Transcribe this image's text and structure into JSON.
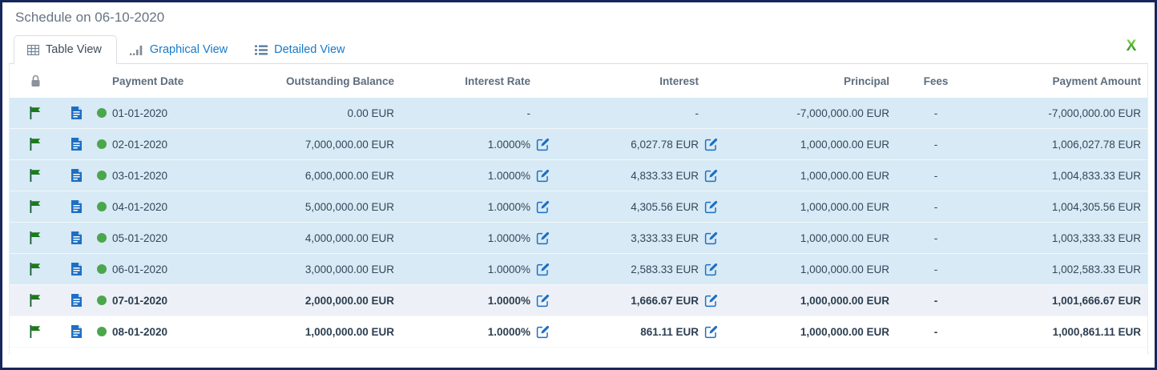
{
  "window": {
    "title": "Schedule on 06-10-2020"
  },
  "tabs": [
    {
      "label": "Table View",
      "icon": "table-icon",
      "active": true
    },
    {
      "label": "Graphical View",
      "icon": "bar-chart-icon",
      "active": false
    },
    {
      "label": "Detailed View",
      "icon": "list-icon",
      "active": false
    }
  ],
  "toolbar": {
    "excel_export_icon": "excel-x-icon"
  },
  "table": {
    "header": {
      "lock_icon": "lock-icon",
      "payment_date": "Payment Date",
      "outstanding_balance": "Outstanding Balance",
      "interest_rate": "Interest Rate",
      "interest": "Interest",
      "principal": "Principal",
      "fees": "Fees",
      "payment_amount": "Payment Amount"
    },
    "row_icons": {
      "flag": "flag-icon",
      "document": "document-icon",
      "status": "status-dot",
      "edit": "edit-icon"
    },
    "rows": [
      {
        "payment_date": "01-01-2020",
        "outstanding_balance": "0.00 EUR",
        "interest_rate": "-",
        "interest": "-",
        "principal": "-7,000,000.00 EUR",
        "fees": "-",
        "payment_amount": "-7,000,000.00 EUR",
        "editable": false,
        "bold": false,
        "bg": "blue"
      },
      {
        "payment_date": "02-01-2020",
        "outstanding_balance": "7,000,000.00 EUR",
        "interest_rate": "1.0000%",
        "interest": "6,027.78 EUR",
        "principal": "1,000,000.00 EUR",
        "fees": "-",
        "payment_amount": "1,006,027.78 EUR",
        "editable": true,
        "bold": false,
        "bg": "blue"
      },
      {
        "payment_date": "03-01-2020",
        "outstanding_balance": "6,000,000.00 EUR",
        "interest_rate": "1.0000%",
        "interest": "4,833.33 EUR",
        "principal": "1,000,000.00 EUR",
        "fees": "-",
        "payment_amount": "1,004,833.33 EUR",
        "editable": true,
        "bold": false,
        "bg": "blue"
      },
      {
        "payment_date": "04-01-2020",
        "outstanding_balance": "5,000,000.00 EUR",
        "interest_rate": "1.0000%",
        "interest": "4,305.56 EUR",
        "principal": "1,000,000.00 EUR",
        "fees": "-",
        "payment_amount": "1,004,305.56 EUR",
        "editable": true,
        "bold": false,
        "bg": "blue"
      },
      {
        "payment_date": "05-01-2020",
        "outstanding_balance": "4,000,000.00 EUR",
        "interest_rate": "1.0000%",
        "interest": "3,333.33 EUR",
        "principal": "1,000,000.00 EUR",
        "fees": "-",
        "payment_amount": "1,003,333.33 EUR",
        "editable": true,
        "bold": false,
        "bg": "blue"
      },
      {
        "payment_date": "06-01-2020",
        "outstanding_balance": "3,000,000.00 EUR",
        "interest_rate": "1.0000%",
        "interest": "2,583.33 EUR",
        "principal": "1,000,000.00 EUR",
        "fees": "-",
        "payment_amount": "1,002,583.33 EUR",
        "editable": true,
        "bold": false,
        "bg": "blue"
      },
      {
        "payment_date": "07-01-2020",
        "outstanding_balance": "2,000,000.00 EUR",
        "interest_rate": "1.0000%",
        "interest": "1,666.67 EUR",
        "principal": "1,000,000.00 EUR",
        "fees": "-",
        "payment_amount": "1,001,666.67 EUR",
        "editable": true,
        "bold": true,
        "bg": "gray"
      },
      {
        "payment_date": "08-01-2020",
        "outstanding_balance": "1,000,000.00 EUR",
        "interest_rate": "1.0000%",
        "interest": "861.11 EUR",
        "principal": "1,000,000.00 EUR",
        "fees": "-",
        "payment_amount": "1,000,861.11 EUR",
        "editable": true,
        "bold": true,
        "bg": "white"
      }
    ]
  },
  "colors": {
    "row_blue": "#d7eaf5",
    "row_gray": "#edf1f7",
    "row_white": "#ffffff",
    "text": "#33475b",
    "header_text": "#5d6d7d",
    "link_blue": "#1779c9",
    "flag_green": "#1b7a1b",
    "dot_green": "#4ca64c",
    "doc_blue": "#1d6fc4",
    "edit_blue": "#1d6fc4",
    "excel_green_light": "#8ee04a",
    "excel_green_dark": "#0f7a0f",
    "border_navy": "#18265b"
  }
}
